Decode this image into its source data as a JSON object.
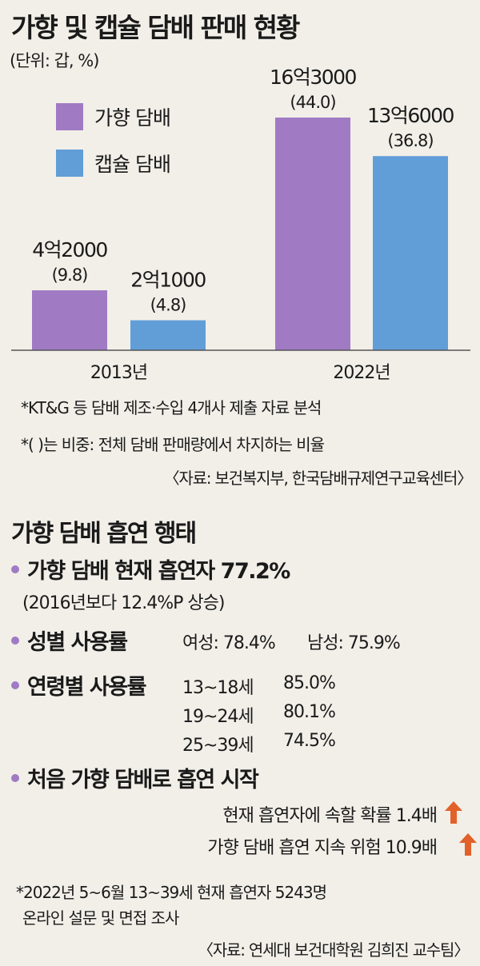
{
  "title": "가향 및 캡슐 담배 판매 현황",
  "unit": "(단위: 갑, %)",
  "colors": {
    "flavored": "#a07bc4",
    "capsule": "#619ed8",
    "arrow": "#e2612a"
  },
  "chart_data": {
    "type": "bar",
    "title": "가향 및 캡슐 담배 판매 현황",
    "categories": [
      "2013년",
      "2022년"
    ],
    "series": [
      {
        "name": "가향 담배",
        "values": [
          420000000,
          1630000000
        ],
        "labels": [
          "4억2000",
          "16억3000"
        ],
        "shares": [
          "(9.8)",
          "(44.0)"
        ]
      },
      {
        "name": "캡슐 담배",
        "values": [
          210000000,
          1360000000
        ],
        "labels": [
          "2억1000",
          "13억6000"
        ],
        "shares": [
          "(4.8)",
          "(36.8)"
        ]
      }
    ],
    "ylim": [
      0,
      1630000000
    ],
    "grid": false,
    "legend": "top-left"
  },
  "notes": {
    "n1": "*KT&G 등 담배 제조·수입 4개사 제출 자료 분석",
    "n2": "*(      )는 비중: 전체 담배 판매량에서 차지하는 비율",
    "source1": "〈자료: 보건복지부, 한국담배규제연구교육센터〉"
  },
  "section2": {
    "title": "가향 담배 흡연 행태",
    "current_head": "가향 담배 현재 흡연자 77.2%",
    "current_sub": "(2016년보다 12.4%P 상승)",
    "gender_head": "성별 사용률",
    "female": "여성: 78.4%",
    "male": "남성: 75.9%",
    "age_head": "연령별  사용률",
    "ages": [
      {
        "range": "13~18세",
        "rate": "85.0%"
      },
      {
        "range": "19~24세",
        "rate": "80.1%"
      },
      {
        "range": "25~39세",
        "rate": "74.5%"
      }
    ],
    "first_head": "처음 가향 담배로 흡연 시작",
    "risk1": "현재 흡연자에 속할 확률 1.4배",
    "risk2": "가향 담배 흡연 지속 위험 10.9배"
  },
  "footer": {
    "n1": "*2022년 5~6월 13~39세 현재 흡연자 5243명",
    "n2": "온라인 설문 및 면접 조사",
    "source": "〈자료: 연세대 보건대학원 김희진 교수팀〉"
  }
}
